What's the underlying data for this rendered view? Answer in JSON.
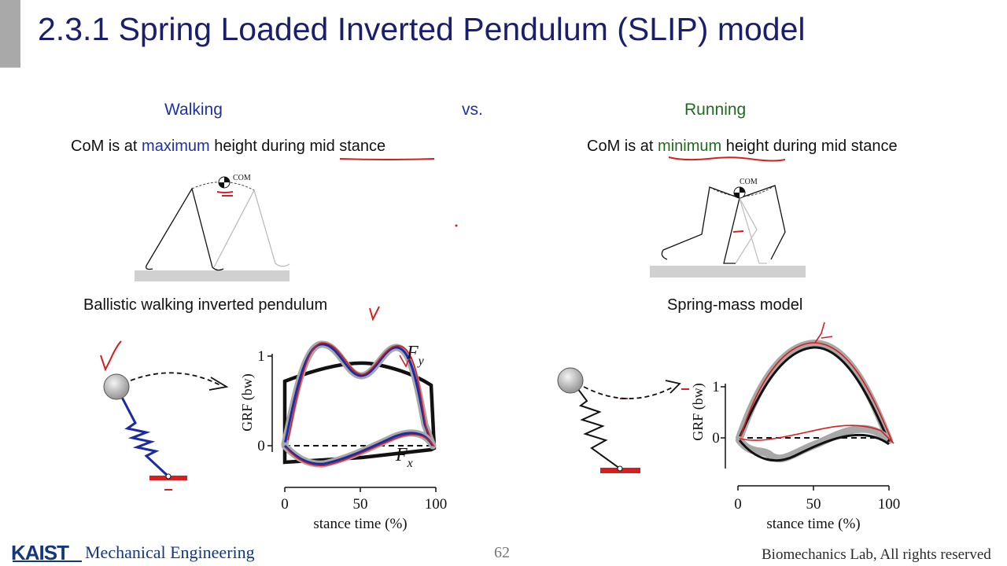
{
  "slide": {
    "title": "2.3.1 Spring Loaded Inverted Pendulum (SLIP) model",
    "page_number": "62"
  },
  "columns": {
    "walking_label": "Walking",
    "vs_label": "vs.",
    "running_label": "Running"
  },
  "walking": {
    "line_prefix": "CoM is at ",
    "line_highlight": "maximum",
    "line_suffix": " height during mid stance",
    "com_label": "COM",
    "model_caption": "Ballistic walking inverted pendulum",
    "chart": {
      "y_axis_label": "GRF (bw)",
      "x_axis_label": "stance time (%)",
      "y_ticks": [
        "1",
        "0"
      ],
      "x_ticks": [
        "0",
        "50",
        "100"
      ],
      "fy_label": "F",
      "fy_sub": "y",
      "fx_label": "F",
      "fx_sub": "x"
    }
  },
  "running": {
    "line_prefix": "CoM is at ",
    "line_highlight": "minimum",
    "line_suffix": " height during mid stance",
    "com_label": "COM",
    "model_caption": "Spring-mass model",
    "chart": {
      "y_axis_label": "GRF (bw)",
      "x_axis_label": "stance time (%)",
      "y_ticks": [
        "1",
        "0"
      ],
      "x_ticks": [
        "0",
        "50",
        "100"
      ]
    }
  },
  "footer": {
    "logo": "KAIST",
    "department": "Mechanical Engineering",
    "rights": "Biomechanics Lab, All rights reserved"
  },
  "colors": {
    "title": "#1b1f6b",
    "walking": "#1f2fa8",
    "running": "#1e6b1e",
    "annotation_red": "#d81e1e",
    "model_blue": "#1b2aa5",
    "ground_gray": "#d0d0d0"
  }
}
